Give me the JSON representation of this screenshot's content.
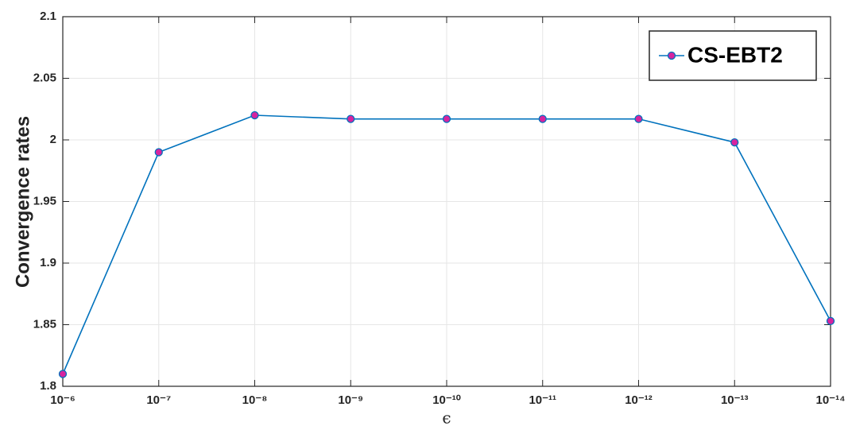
{
  "chart_data": {
    "type": "line",
    "ylabel": "Convergence rates",
    "xlabel": "ϵ",
    "xscale": "log",
    "x": [
      1e-06,
      1e-07,
      1e-08,
      1e-09,
      1e-10,
      1e-11,
      1e-12,
      1e-13,
      1e-14
    ],
    "series": [
      {
        "name": "CS-EBT2",
        "color": "#0072bd",
        "marker_color": "#d6249f",
        "values": [
          1.81,
          1.99,
          2.02,
          2.017,
          2.017,
          2.017,
          2.017,
          1.998,
          1.853
        ]
      }
    ],
    "xlim": [
      1e-06,
      1e-14
    ],
    "xticks": [
      {
        "value": 1e-06,
        "label": "10⁻⁶"
      },
      {
        "value": 1e-07,
        "label": "10⁻⁷"
      },
      {
        "value": 1e-08,
        "label": "10⁻⁸"
      },
      {
        "value": 1e-09,
        "label": "10⁻⁹"
      },
      {
        "value": 1e-10,
        "label": "10⁻¹⁰"
      },
      {
        "value": 1e-11,
        "label": "10⁻¹¹"
      },
      {
        "value": 1e-12,
        "label": "10⁻¹²"
      },
      {
        "value": 1e-13,
        "label": "10⁻¹³"
      },
      {
        "value": 1e-14,
        "label": "10⁻¹⁴"
      }
    ],
    "ylim": [
      1.8,
      2.1
    ],
    "yticks": [
      1.8,
      1.85,
      1.9,
      1.95,
      2,
      2.05,
      2.1
    ],
    "grid": true,
    "legend": "top-right"
  }
}
